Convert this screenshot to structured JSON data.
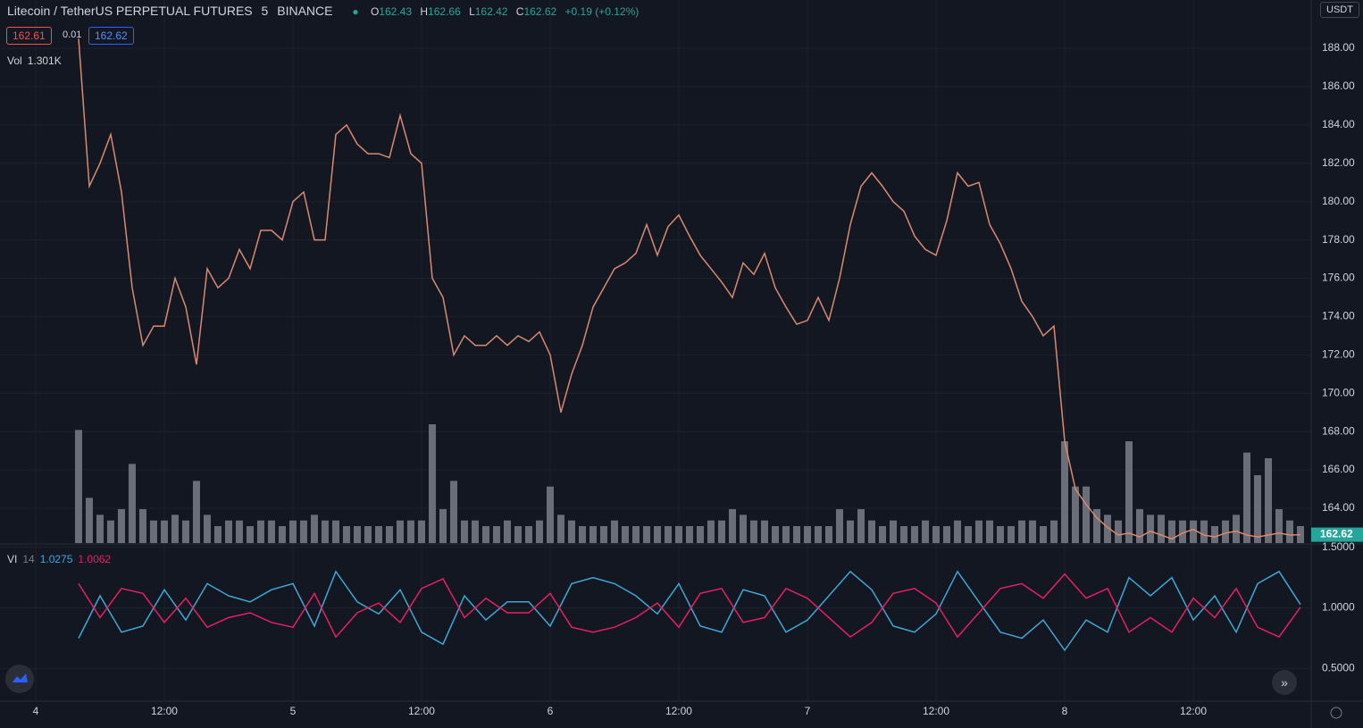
{
  "header": {
    "symbol": "Litecoin / TetherUS PERPETUAL FUTURES",
    "interval": "5",
    "exchange": "BINANCE",
    "o_label": "O",
    "open": 162.43,
    "h_label": "H",
    "high": 162.66,
    "l_label": "L",
    "low": 162.42,
    "c_label": "C",
    "close": 162.62,
    "change": "+0.19 (+0.12%)",
    "bid": 162.61,
    "spread": 0.01,
    "ask": 162.62,
    "vol_label": "Vol",
    "vol_value": "1.301K",
    "currency": "USDT"
  },
  "chart_data": [
    {
      "type": "line",
      "color": "#d98a70",
      "x": [
        4,
        5,
        6,
        7,
        8,
        9,
        10,
        11,
        12,
        13,
        14,
        15,
        16,
        17,
        18,
        19,
        20,
        21,
        22,
        23,
        24,
        25,
        26,
        27,
        28,
        29,
        30,
        31,
        32,
        33,
        34,
        35,
        36,
        37,
        38,
        39,
        40,
        41,
        42,
        43,
        44,
        45,
        46,
        47,
        48,
        49,
        50,
        51,
        52,
        53,
        54,
        55,
        56,
        57,
        58,
        59,
        60,
        61,
        62,
        63,
        64,
        65,
        66,
        67,
        68,
        69,
        70,
        71,
        72,
        73,
        74,
        75,
        76,
        77,
        78,
        79,
        80,
        81,
        82,
        83,
        84,
        85,
        86,
        87,
        88,
        89,
        90,
        91,
        92,
        93,
        94,
        95,
        96,
        97,
        98,
        99,
        100,
        101,
        102,
        103,
        104,
        105,
        106,
        107,
        108,
        109,
        110,
        111,
        112,
        113,
        114,
        115,
        116,
        117,
        118
      ],
      "values": [
        188.5,
        180.8,
        182,
        183.5,
        180.5,
        175.5,
        172.5,
        173.5,
        173.5,
        176,
        174.5,
        171.5,
        176.5,
        175.5,
        176,
        177.5,
        176.5,
        178.5,
        178.5,
        178,
        180,
        180.5,
        178,
        178,
        183.5,
        184,
        183,
        182.5,
        182.5,
        182.3,
        184.5,
        182.5,
        182,
        176,
        175,
        172,
        173,
        172.5,
        172.5,
        173,
        172.5,
        173,
        172.7,
        173.2,
        172,
        169,
        171,
        172.5,
        174.5,
        175.5,
        176.5,
        176.8,
        177.3,
        178.8,
        177.2,
        178.7,
        179.3,
        178.2,
        177.2,
        176.5,
        175.8,
        175,
        176.8,
        176.2,
        177.3,
        175.5,
        174.5,
        173.6,
        173.8,
        175,
        173.8,
        176,
        178.8,
        180.8,
        181.5,
        180.8,
        180,
        179.5,
        178.2,
        177.5,
        177.2,
        179,
        181.5,
        180.8,
        181,
        178.8,
        177.8,
        176.5,
        174.8,
        174,
        173,
        173.5,
        167.5,
        165,
        164.2,
        163.5,
        163,
        162.6,
        162.7,
        162.5,
        162.8,
        162.6,
        162.4,
        162.7,
        162.9,
        162.6,
        162.5,
        162.7,
        162.8,
        162.6,
        162.5,
        162.6,
        162.7,
        162.6,
        162.62
      ],
      "volume": [
        10,
        4,
        2.5,
        2,
        3,
        7,
        3,
        2,
        2,
        2.5,
        2,
        5.5,
        2.5,
        1.5,
        2,
        2,
        1.5,
        2,
        2,
        1.5,
        2,
        2,
        2.5,
        2,
        2,
        1.5,
        1.5,
        1.5,
        1.5,
        1.5,
        2,
        2,
        2,
        10.5,
        3,
        5.5,
        2,
        2,
        1.5,
        1.5,
        2,
        1.5,
        1.5,
        2,
        5,
        2.5,
        2,
        1.5,
        1.5,
        1.5,
        2,
        1.5,
        1.5,
        1.5,
        1.5,
        1.5,
        1.5,
        1.5,
        1.5,
        2,
        2,
        3,
        2.5,
        2,
        2,
        1.5,
        1.5,
        1.5,
        1.5,
        1.5,
        1.5,
        3,
        2,
        3,
        2,
        1.5,
        2,
        1.5,
        1.5,
        2,
        1.5,
        1.5,
        2,
        1.5,
        2,
        2,
        1.5,
        1.5,
        2,
        2,
        1.5,
        2,
        9,
        5,
        5,
        3,
        2.5,
        2,
        9,
        3,
        2.5,
        2.5,
        2,
        2,
        2,
        2,
        1.5,
        2,
        2.5,
        8,
        6,
        7.5,
        3,
        2,
        1.5
      ],
      "volume_color": "#6b6e78",
      "volume_lim": [
        0,
        48
      ],
      "last_price": 162.62,
      "last_color": "#26a69a",
      "xlim": [
        -3.33,
        119
      ],
      "xticks": [
        {
          "value": 0,
          "label": "4"
        },
        {
          "value": 12,
          "label": "12:00"
        },
        {
          "value": 24,
          "label": "5"
        },
        {
          "value": 36,
          "label": "12:00"
        },
        {
          "value": 48,
          "label": "6"
        },
        {
          "value": 60,
          "label": "12:00"
        },
        {
          "value": 72,
          "label": "7"
        },
        {
          "value": 84,
          "label": "12:00"
        },
        {
          "value": 96,
          "label": "8"
        },
        {
          "value": 108,
          "label": "12:00"
        }
      ],
      "ylim": [
        162.18,
        190.52
      ],
      "yticks": [
        {
          "value": 164,
          "label": "164.00"
        },
        {
          "value": 166,
          "label": "166.00"
        },
        {
          "value": 168,
          "label": "168.00"
        },
        {
          "value": 170,
          "label": "170.00"
        },
        {
          "value": 172,
          "label": "172.00"
        },
        {
          "value": 174,
          "label": "174.00"
        },
        {
          "value": 176,
          "label": "176.00"
        },
        {
          "value": 178,
          "label": "178.00"
        },
        {
          "value": 180,
          "label": "180.00"
        },
        {
          "value": 182,
          "label": "182.00"
        },
        {
          "value": 184,
          "label": "184.00"
        },
        {
          "value": 186,
          "label": "186.00"
        },
        {
          "value": 188,
          "label": "188.00"
        }
      ],
      "grid": true
    },
    {
      "type": "line",
      "title": "VI",
      "length": 14,
      "x": [
        4,
        6,
        8,
        10,
        12,
        14,
        16,
        18,
        20,
        22,
        24,
        26,
        28,
        30,
        32,
        34,
        36,
        38,
        40,
        42,
        44,
        46,
        48,
        50,
        52,
        54,
        56,
        58,
        60,
        62,
        64,
        66,
        68,
        70,
        72,
        74,
        76,
        78,
        80,
        82,
        84,
        86,
        88,
        90,
        92,
        94,
        96,
        98,
        100,
        102,
        104,
        106,
        108,
        110,
        112,
        114,
        116,
        118
      ],
      "series": [
        {
          "color": "#3fa7d6",
          "values": [
            0.75,
            1.1,
            0.8,
            0.85,
            1.15,
            0.9,
            1.2,
            1.1,
            1.05,
            1.15,
            1.2,
            0.85,
            1.3,
            1.05,
            0.95,
            1.15,
            0.8,
            0.7,
            1.1,
            0.9,
            1.05,
            1.05,
            0.85,
            1.2,
            1.25,
            1.2,
            1.1,
            0.95,
            1.2,
            0.85,
            0.8,
            1.15,
            1.1,
            0.8,
            0.9,
            1.1,
            1.3,
            1.15,
            0.85,
            0.8,
            0.95,
            1.3,
            1.05,
            0.8,
            0.75,
            0.9,
            0.65,
            0.9,
            0.8,
            1.25,
            1.1,
            1.25,
            0.9,
            1.1,
            0.8,
            1.2,
            1.3,
            1.0275
          ]
        },
        {
          "color": "#e91e63",
          "values": [
            1.2,
            0.92,
            1.16,
            1.12,
            0.88,
            1.08,
            0.84,
            0.92,
            0.96,
            0.88,
            0.84,
            1.12,
            0.76,
            0.96,
            1.04,
            0.88,
            1.16,
            1.24,
            0.92,
            1.08,
            0.96,
            0.96,
            1.12,
            0.84,
            0.8,
            0.84,
            0.92,
            1.04,
            0.84,
            1.12,
            1.16,
            0.88,
            0.92,
            1.16,
            1.08,
            0.92,
            0.76,
            0.88,
            1.12,
            1.16,
            1.04,
            0.76,
            0.96,
            1.16,
            1.2,
            1.08,
            1.28,
            1.08,
            1.16,
            0.8,
            0.92,
            0.8,
            1.08,
            0.92,
            1.16,
            0.84,
            0.76,
            1.0062
          ]
        }
      ],
      "ylim": [
        0.23,
        1.52
      ],
      "yticks": [
        {
          "value": 1.5,
          "label": "1.5000"
        },
        {
          "value": 1,
          "label": "1.0000"
        },
        {
          "value": 0.5,
          "label": "0.5000"
        }
      ],
      "grid": true
    }
  ]
}
